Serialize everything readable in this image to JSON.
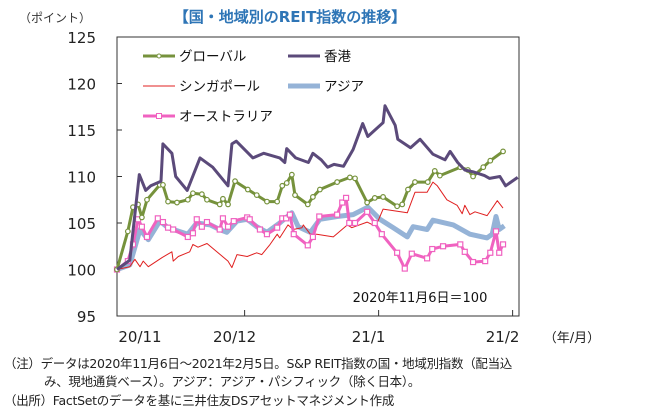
{
  "chart_data": {
    "type": "line",
    "title": "【国・地域別のREIT指数の推移】",
    "ylabel": "（ポイント）",
    "xlabel": "（年/月）",
    "ylim": [
      95,
      125
    ],
    "yticks": [
      95,
      100,
      105,
      110,
      115,
      120,
      125
    ],
    "x_unit": "trading days from 2020-11-06",
    "xlim": [
      0,
      63
    ],
    "xticks": [
      {
        "x": 0,
        "label": "20/11"
      },
      {
        "x": 20,
        "label": "20/12"
      },
      {
        "x": 41,
        "label": "21/1"
      },
      {
        "x": 62,
        "label": "21/2"
      }
    ],
    "annotation": "2020年11月6日＝100",
    "legend_position": "top-left",
    "series": [
      {
        "name": "グローバル",
        "color": "#76923c",
        "width": 3,
        "marker": "circle",
        "x": [
          0,
          1.7,
          2.5,
          3.3,
          3.9,
          4.7,
          6.7,
          7.2,
          8,
          9.4,
          11.1,
          11.9,
          13.3,
          14.1,
          16.1,
          16.6,
          17.4,
          18.5,
          20.5,
          21.9,
          23.5,
          25.1,
          25.9,
          26.6,
          27.4,
          27.9,
          29.9,
          30.7,
          31.8,
          34.5,
          36.5,
          37.3,
          39.2,
          40.4,
          41.7,
          43.9,
          44.7,
          45.6,
          46.7,
          48.7,
          49.8,
          50.6,
          53.8,
          55,
          55.8,
          57.4,
          58.5,
          60.5
        ],
        "y": [
          100,
          104.1,
          106.7,
          107,
          105.6,
          107.5,
          109.1,
          109.1,
          107.3,
          107.2,
          107.5,
          108.2,
          108.1,
          107.5,
          107,
          107.6,
          107,
          109.5,
          108.6,
          108,
          107.3,
          107.3,
          109,
          109.3,
          110.2,
          108,
          107,
          107.8,
          108.6,
          109.4,
          109.9,
          109.8,
          107.2,
          107.7,
          107.8,
          106.8,
          107,
          108.6,
          109.4,
          109.4,
          110.6,
          110.1,
          111,
          110.7,
          110,
          111,
          111.7,
          112.7
        ]
      },
      {
        "name": "香港",
        "color": "#5b4a7a",
        "width": 3,
        "marker": "none",
        "x": [
          0,
          2,
          3.5,
          4.5,
          5.3,
          6.9,
          7.2,
          8.6,
          9.2,
          11,
          13,
          15,
          17.4,
          18,
          18.7,
          21.3,
          23,
          25.5,
          26.3,
          26.6,
          28,
          30,
          30.7,
          32,
          33,
          34,
          35.5,
          37,
          38.5,
          39.3,
          41.7,
          42,
          43.6,
          44,
          46,
          47.5,
          49.5,
          51.4,
          52.2,
          53.4,
          54.5,
          55.8,
          57.6,
          58.4,
          60,
          60.9,
          62.8
        ],
        "y": [
          100,
          101,
          110.2,
          108.5,
          109,
          109.5,
          113.5,
          112.5,
          110,
          108.5,
          112,
          111,
          109,
          113.5,
          113.8,
          112,
          112.5,
          112,
          111.5,
          113,
          112,
          111.5,
          112.5,
          111.8,
          111,
          111.3,
          111.1,
          112.9,
          115.7,
          114.3,
          115.8,
          117.6,
          115.5,
          114,
          113.1,
          114,
          112.4,
          111.8,
          112.7,
          111.5,
          110.7,
          110.5,
          110.1,
          109.8,
          110,
          109,
          109.9
        ]
      },
      {
        "name": "シンガポール",
        "color": "#e02020",
        "width": 1,
        "marker": "none",
        "x": [
          0,
          2,
          2.8,
          3.6,
          4.1,
          4.9,
          7.1,
          8.6,
          8.8,
          9.6,
          11.4,
          11.9,
          12.7,
          14.1,
          17.4,
          18,
          18.8,
          20.4,
          21.9,
          22.7,
          24,
          25.1,
          25.5,
          26.8,
          27.6,
          29,
          29.2,
          30.3,
          31.3,
          33.9,
          36.1,
          36.8,
          39.2,
          40.1,
          40.9,
          41.7,
          45.5,
          46.7,
          48.6,
          49.5,
          50.2,
          51.7,
          53.3,
          54.1,
          54.5,
          55.3,
          56.1,
          58,
          59.6,
          60.5
        ],
        "y": [
          100,
          100.3,
          101.1,
          100.3,
          100.9,
          100.3,
          101.3,
          101.9,
          100.9,
          101.4,
          101.9,
          102.7,
          102.4,
          102.8,
          100.9,
          100.2,
          101.6,
          101.4,
          101.8,
          101.6,
          102.7,
          103.8,
          103.4,
          104.8,
          104.3,
          104.5,
          104.8,
          103.8,
          103.8,
          103.5,
          104.8,
          104.5,
          105.1,
          104.8,
          105.2,
          106.5,
          106.1,
          108.3,
          108.3,
          109.4,
          109,
          107.5,
          106.9,
          106,
          106.9,
          105.9,
          106.2,
          105.8,
          107.4,
          106.6
        ]
      },
      {
        "name": "アジア",
        "color": "#95b3d7",
        "width": 5,
        "marker": "none",
        "x": [
          0,
          2,
          3.6,
          4.9,
          6.7,
          8,
          11.1,
          12.5,
          14.6,
          16.1,
          17.2,
          18.8,
          20.4,
          21.9,
          23.5,
          25.5,
          27.4,
          28.4,
          30.3,
          31.8,
          34.5,
          37,
          39.3,
          41.2,
          43.3,
          45.5,
          46.4,
          48.6,
          49.5,
          52.7,
          55.3,
          58,
          58.8,
          59.4,
          59.9,
          60.7
        ],
        "y": [
          100,
          100.5,
          104.3,
          103.2,
          105.2,
          104.5,
          103.8,
          105,
          104.8,
          104.3,
          104,
          105.2,
          105.4,
          104.6,
          104,
          105,
          106.1,
          104.6,
          104,
          105.4,
          105.7,
          105.9,
          106.7,
          105.4,
          104.5,
          103.5,
          104.6,
          104.3,
          105.3,
          104.8,
          103.8,
          103.4,
          103.8,
          105.7,
          104.3,
          104.7
        ]
      },
      {
        "name": "オーストラリア",
        "color": "#f062c0",
        "width": 3,
        "marker": "square",
        "x": [
          0,
          1.7,
          2.5,
          3.3,
          3.9,
          4.7,
          6.4,
          7.2,
          8,
          8.8,
          11.1,
          11.9,
          12.5,
          13.3,
          14.1,
          16.1,
          16.6,
          17.4,
          18.3,
          20.4,
          20.8,
          22.4,
          23.5,
          25.1,
          25.9,
          26.5,
          27.1,
          27.7,
          29.9,
          30.7,
          31.7,
          34.5,
          35.3,
          35.9,
          36.4,
          37.3,
          39.2,
          40.4,
          41.5,
          43.9,
          45.1,
          46.2,
          48.6,
          49.4,
          51.1,
          53.8,
          54.5,
          55.8,
          57.7,
          58.5,
          59.4,
          59.9,
          60.5
        ],
        "y": [
          100,
          100.9,
          102.7,
          105.4,
          104.6,
          103.5,
          105.5,
          105.1,
          104.5,
          104.3,
          103.5,
          103.9,
          105.4,
          104.6,
          105.1,
          104.3,
          105.5,
          104.6,
          105.2,
          105.6,
          105.4,
          104.3,
          103.8,
          104.5,
          105.5,
          105.5,
          105.9,
          103.8,
          102.6,
          103.5,
          105.7,
          105.9,
          107.2,
          107.7,
          105,
          105,
          106.2,
          105,
          103.8,
          101.8,
          100.1,
          101.7,
          101.2,
          102.2,
          102.5,
          102.7,
          101.9,
          100.8,
          100.9,
          101.8,
          104.1,
          101.8,
          102.7
        ]
      }
    ]
  },
  "notes": {
    "line1": "（注）データは2020年11月6日～2021年2月5日。S&P REIT指数の国・地域別指数（配当込",
    "line2": "み、現地通貨ベース）。アジア：アジア・パシフィック（除く日本）。",
    "line3": "（出所）FactSetのデータを基に三井住友DSアセットマネジメント作成"
  }
}
